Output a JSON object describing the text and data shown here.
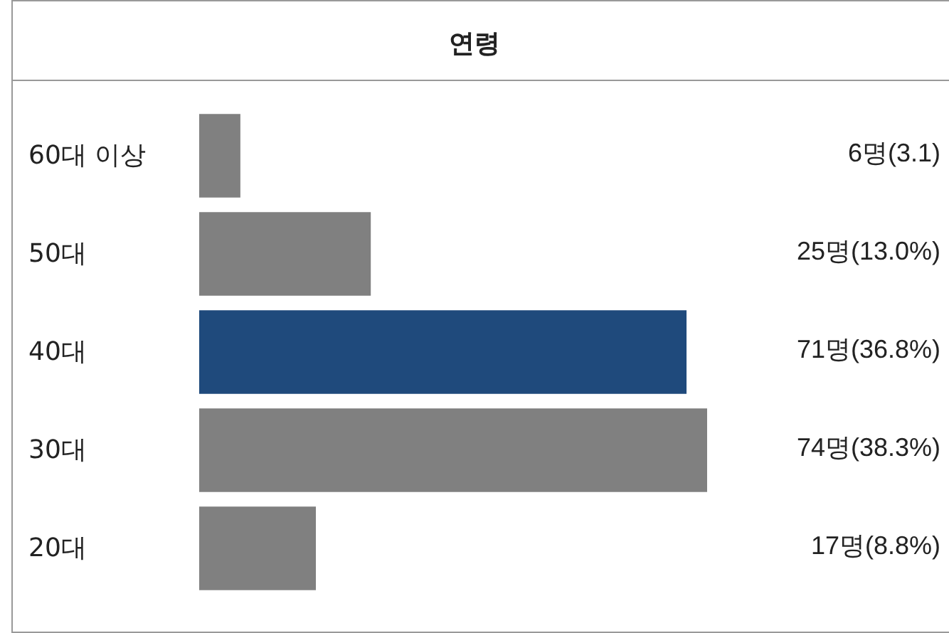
{
  "chart_data": {
    "type": "bar",
    "orientation": "horizontal",
    "title": "연령",
    "categories": [
      "60대 이상",
      "50대",
      "40대",
      "30대",
      "20대"
    ],
    "values": [
      6,
      25,
      71,
      74,
      17
    ],
    "value_labels": [
      "6명(3.1)",
      "25명(13.0%)",
      "71명(36.8%)",
      "74명(38.3%)",
      "17명(8.8%)"
    ],
    "colors": [
      "#808080",
      "#808080",
      "#1f4a7c",
      "#808080",
      "#808080"
    ]
  }
}
